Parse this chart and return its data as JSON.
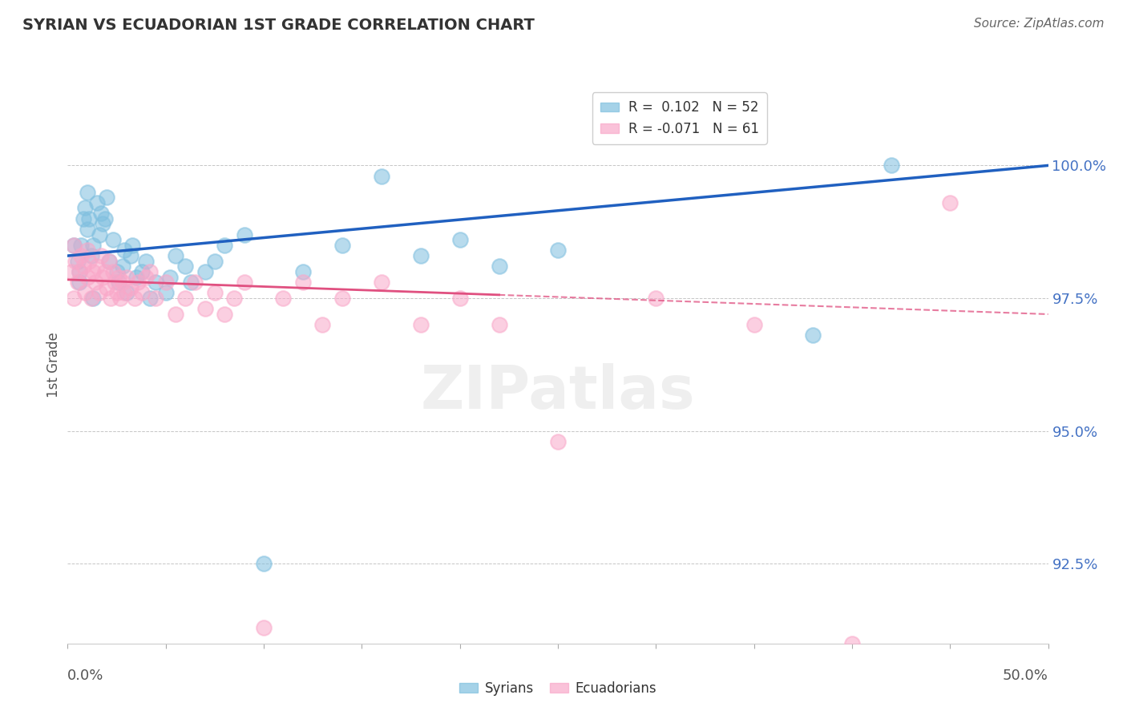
{
  "title": "SYRIAN VS ECUADORIAN 1ST GRADE CORRELATION CHART",
  "source": "Source: ZipAtlas.com",
  "ylabel": "1st Grade",
  "y_tick_labels": [
    "92.5%",
    "95.0%",
    "97.5%",
    "100.0%"
  ],
  "y_tick_values": [
    92.5,
    95.0,
    97.5,
    100.0
  ],
  "xlim": [
    0.0,
    50.0
  ],
  "ylim": [
    91.0,
    101.5
  ],
  "syrian_color": "#7fbfdf",
  "ecuadorian_color": "#f9a8c9",
  "trend_blue": "#2060c0",
  "trend_pink": "#e05080",
  "watermark": "ZIPatlas",
  "legend_r_blue": "0.102",
  "legend_n_blue": "52",
  "legend_r_pink": "-0.071",
  "legend_n_pink": "61",
  "syrians_x": [
    0.3,
    0.5,
    0.6,
    0.6,
    0.7,
    0.8,
    0.9,
    1.0,
    1.0,
    1.1,
    1.2,
    1.3,
    1.3,
    1.5,
    1.6,
    1.7,
    1.8,
    1.9,
    2.0,
    2.1,
    2.3,
    2.5,
    2.6,
    2.8,
    2.9,
    3.0,
    3.2,
    3.3,
    3.5,
    3.8,
    4.0,
    4.2,
    4.5,
    5.0,
    5.2,
    5.5,
    6.0,
    6.3,
    7.0,
    7.5,
    8.0,
    9.0,
    10.0,
    12.0,
    14.0,
    16.0,
    18.0,
    20.0,
    22.0,
    25.0,
    38.0,
    42.0
  ],
  "syrians_y": [
    98.5,
    98.2,
    97.8,
    98.0,
    98.5,
    99.0,
    99.2,
    99.5,
    98.8,
    99.0,
    98.3,
    98.5,
    97.5,
    99.3,
    98.7,
    99.1,
    98.9,
    99.0,
    99.4,
    98.2,
    98.6,
    98.0,
    97.8,
    98.1,
    98.4,
    97.6,
    98.3,
    98.5,
    97.9,
    98.0,
    98.2,
    97.5,
    97.8,
    97.6,
    97.9,
    98.3,
    98.1,
    97.8,
    98.0,
    98.2,
    98.5,
    98.7,
    92.5,
    98.0,
    98.5,
    99.8,
    98.3,
    98.6,
    98.1,
    98.4,
    96.8,
    100.0
  ],
  "ecuadorians_x": [
    0.2,
    0.3,
    0.3,
    0.4,
    0.5,
    0.6,
    0.7,
    0.8,
    0.9,
    1.0,
    1.0,
    1.1,
    1.2,
    1.3,
    1.4,
    1.5,
    1.6,
    1.7,
    1.8,
    1.9,
    2.0,
    2.1,
    2.2,
    2.3,
    2.4,
    2.5,
    2.6,
    2.7,
    2.8,
    2.9,
    3.0,
    3.2,
    3.4,
    3.6,
    3.8,
    4.0,
    4.2,
    4.5,
    5.0,
    5.5,
    6.0,
    6.5,
    7.0,
    7.5,
    8.0,
    8.5,
    9.0,
    10.0,
    11.0,
    12.0,
    13.0,
    14.0,
    16.0,
    18.0,
    20.0,
    22.0,
    25.0,
    30.0,
    35.0,
    40.0,
    45.0
  ],
  "ecuadorians_y": [
    98.0,
    97.5,
    98.5,
    98.2,
    97.8,
    98.0,
    98.3,
    98.1,
    97.6,
    98.4,
    97.9,
    98.2,
    97.5,
    98.0,
    97.8,
    98.1,
    97.6,
    98.3,
    97.9,
    98.0,
    97.7,
    98.2,
    97.5,
    98.0,
    97.8,
    97.6,
    97.9,
    97.5,
    97.8,
    97.6,
    97.9,
    97.7,
    97.5,
    97.8,
    97.6,
    97.9,
    98.0,
    97.5,
    97.8,
    97.2,
    97.5,
    97.8,
    97.3,
    97.6,
    97.2,
    97.5,
    97.8,
    91.3,
    97.5,
    97.8,
    97.0,
    97.5,
    97.8,
    97.0,
    97.5,
    97.0,
    94.8,
    97.5,
    97.0,
    91.0,
    99.3
  ],
  "blue_trend_x0": 0.0,
  "blue_trend_y0": 98.3,
  "blue_trend_x1": 50.0,
  "blue_trend_y1": 100.0,
  "pink_trend_x0": 0.0,
  "pink_trend_y0": 97.85,
  "pink_trend_x1": 50.0,
  "pink_trend_y1": 97.2,
  "pink_solid_end_x": 22.0
}
